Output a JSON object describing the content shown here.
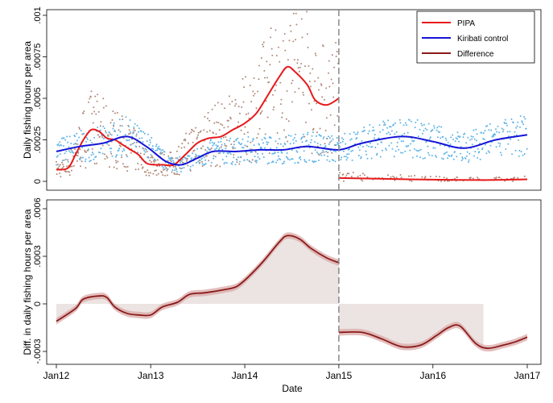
{
  "chart_data": [
    {
      "type": "scatter",
      "panel": "top",
      "ylabel": "Daily fishing hours per area",
      "xlabel": "",
      "x_range": [
        "2012-01-01",
        "2017-01-01"
      ],
      "ylim": [
        0,
        0.001
      ],
      "y_ticks": [
        0,
        0.00025,
        0.0005,
        0.00075,
        0.001
      ],
      "y_tick_labels": [
        "0",
        ".00025",
        ".0005",
        ".00075",
        ".001"
      ],
      "treatment_date": "2015-01-01",
      "legend_position": "top-right",
      "legend": [
        {
          "label": "PIPA",
          "color": "#e8191b",
          "style": "line"
        },
        {
          "label": "Kiribati control",
          "color": "#1414d8",
          "style": "line"
        },
        {
          "label": "Difference",
          "color": "#8b1a1a",
          "style": "line"
        }
      ],
      "series": [
        {
          "name": "PIPA",
          "kind": "smoothed-line",
          "color": "#e8191b",
          "points": [
            [
              "2012-01-01",
              7e-05
            ],
            [
              "2012-02-15",
              8e-05
            ],
            [
              "2012-03-15",
              0.00016
            ],
            [
              "2012-04-15",
              0.00025
            ],
            [
              "2012-05-15",
              0.00031
            ],
            [
              "2012-06-15",
              0.0003
            ],
            [
              "2012-07-15",
              0.00026
            ],
            [
              "2012-08-15",
              0.00025
            ],
            [
              "2012-09-15",
              0.00022
            ],
            [
              "2012-10-15",
              0.00019
            ],
            [
              "2012-11-15",
              0.00016
            ],
            [
              "2012-12-15",
              0.00011
            ],
            [
              "2013-01-15",
              0.0001
            ],
            [
              "2013-02-15",
              0.0001
            ],
            [
              "2013-04-01",
              0.0001
            ],
            [
              "2013-05-15",
              0.00016
            ],
            [
              "2013-07-01",
              0.00023
            ],
            [
              "2013-08-15",
              0.00026
            ],
            [
              "2013-10-01",
              0.00027
            ],
            [
              "2013-11-15",
              0.00031
            ],
            [
              "2014-01-01",
              0.00035
            ],
            [
              "2014-02-15",
              0.00041
            ],
            [
              "2014-04-01",
              0.00052
            ],
            [
              "2014-05-15",
              0.00063
            ],
            [
              "2014-06-15",
              0.00069
            ],
            [
              "2014-07-15",
              0.00066
            ],
            [
              "2014-09-01",
              0.00058
            ],
            [
              "2014-10-01",
              0.00049
            ],
            [
              "2014-11-15",
              0.00046
            ],
            [
              "2015-01-01",
              0.0005
            ]
          ]
        },
        {
          "name": "PIPA",
          "kind": "smoothed-line",
          "color": "#e8191b",
          "points": [
            [
              "2015-01-01",
              2e-05
            ],
            [
              "2015-07-01",
              1.5e-05
            ],
            [
              "2016-01-01",
              1e-05
            ],
            [
              "2016-07-01",
              8e-06
            ],
            [
              "2017-01-01",
              1.2e-05
            ]
          ]
        },
        {
          "name": "Kiribati control",
          "kind": "smoothed-line",
          "color": "#1414d8",
          "points": [
            [
              "2012-01-01",
              0.00018
            ],
            [
              "2012-04-01",
              0.00021
            ],
            [
              "2012-07-01",
              0.00023
            ],
            [
              "2012-10-01",
              0.00027
            ],
            [
              "2012-12-15",
              0.00021
            ],
            [
              "2013-03-01",
              0.00012
            ],
            [
              "2013-05-01",
              0.0001
            ],
            [
              "2013-07-01",
              0.00014
            ],
            [
              "2013-09-01",
              0.00018
            ],
            [
              "2013-12-01",
              0.00018
            ],
            [
              "2014-03-01",
              0.00019
            ],
            [
              "2014-06-01",
              0.00019
            ],
            [
              "2014-09-01",
              0.00021
            ],
            [
              "2015-01-01",
              0.00019
            ],
            [
              "2015-04-01",
              0.00023
            ],
            [
              "2015-09-01",
              0.00027
            ],
            [
              "2016-01-01",
              0.00024
            ],
            [
              "2016-05-01",
              0.0002
            ],
            [
              "2016-09-01",
              0.00025
            ],
            [
              "2017-01-01",
              0.00028
            ]
          ]
        }
      ]
    },
    {
      "type": "area",
      "panel": "bottom",
      "ylabel": "Diff. in daily fishing hours per area",
      "xlabel": "Date",
      "x_range": [
        "2012-01-01",
        "2017-01-01"
      ],
      "ylim": [
        -0.00035,
        0.0006
      ],
      "y_ticks": [
        -0.0003,
        0,
        0.0003,
        0.0006
      ],
      "y_tick_labels": [
        "-.0003",
        "0",
        ".0003",
        ".0006"
      ],
      "x_ticks": [
        "2012-01-01",
        "2013-01-01",
        "2014-01-01",
        "2015-01-01",
        "2016-01-01",
        "2017-01-01"
      ],
      "x_tick_labels": [
        "Jan12",
        "Jan13",
        "Jan14",
        "Jan15",
        "Jan16",
        "Jan17"
      ],
      "treatment_date": "2015-01-01",
      "shaded_region_end": "2016-07-15",
      "series": [
        {
          "name": "Difference",
          "color": "#8b1a1a",
          "points": [
            [
              "2012-01-01",
              -0.00011
            ],
            [
              "2012-03-15",
              -3e-05
            ],
            [
              "2012-04-15",
              3e-05
            ],
            [
              "2012-06-15",
              5e-05
            ],
            [
              "2012-07-15",
              4e-05
            ],
            [
              "2012-08-15",
              -2e-05
            ],
            [
              "2012-10-01",
              -6e-05
            ],
            [
              "2012-11-15",
              -7e-05
            ],
            [
              "2013-01-01",
              -7e-05
            ],
            [
              "2013-02-15",
              -2e-05
            ],
            [
              "2013-04-15",
              1e-05
            ],
            [
              "2013-06-01",
              6e-05
            ],
            [
              "2013-08-01",
              7e-05
            ],
            [
              "2013-10-15",
              9e-05
            ],
            [
              "2013-12-01",
              0.00011
            ],
            [
              "2014-01-15",
              0.00017
            ],
            [
              "2014-03-15",
              0.00027
            ],
            [
              "2014-05-15",
              0.00039
            ],
            [
              "2014-06-15",
              0.00043
            ],
            [
              "2014-08-01",
              0.00041
            ],
            [
              "2014-09-15",
              0.00035
            ],
            [
              "2014-11-15",
              0.00029
            ],
            [
              "2015-01-01",
              0.00026
            ]
          ]
        },
        {
          "name": "Difference",
          "color": "#8b1a1a",
          "points": [
            [
              "2015-01-01",
              -0.00018
            ],
            [
              "2015-04-01",
              -0.00018
            ],
            [
              "2015-06-15",
              -0.00022
            ],
            [
              "2015-09-01",
              -0.00027
            ],
            [
              "2015-11-15",
              -0.00026
            ],
            [
              "2016-01-15",
              -0.0002
            ],
            [
              "2016-03-01",
              -0.00015
            ],
            [
              "2016-04-15",
              -0.00014
            ],
            [
              "2016-06-15",
              -0.00025
            ],
            [
              "2016-08-01",
              -0.00028
            ],
            [
              "2016-10-01",
              -0.00026
            ],
            [
              "2016-11-15",
              -0.00024
            ],
            [
              "2017-01-01",
              -0.00021
            ]
          ]
        }
      ]
    }
  ]
}
